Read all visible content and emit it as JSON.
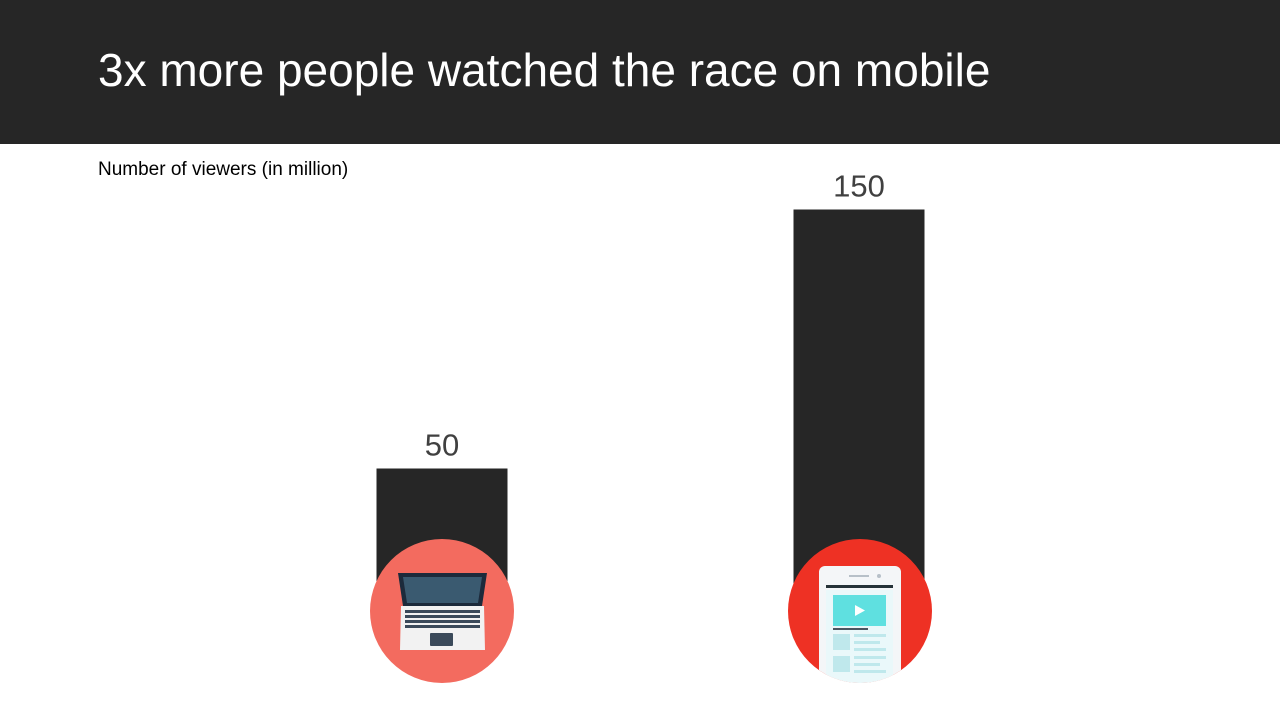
{
  "chart_data": {
    "type": "bar",
    "title": "3x more people watched the race on mobile",
    "subtitle": "Number of viewers (in million)",
    "categories": [
      null,
      null
    ],
    "values": [
      50,
      150
    ],
    "color": "#262626"
  }
}
